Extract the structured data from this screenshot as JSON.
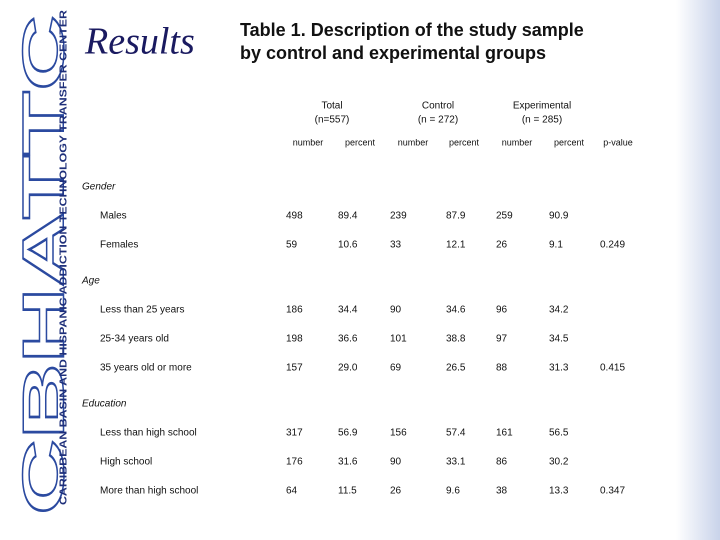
{
  "sidebar": {
    "logo": "CBHATTC",
    "organization": "CARIBBEAN BASIN AND HISPANIC ADDICTION TECHNOLOGY TRANSFER CENTER"
  },
  "heading": "Results",
  "title": [
    "Table 1. Description of the study sample",
    "by control and experimental groups"
  ],
  "table": {
    "groups": [
      {
        "label": "Total",
        "n": "(n=557)"
      },
      {
        "label": "Control",
        "n": "(n = 272)"
      },
      {
        "label": "Experimental",
        "n": "(n = 285)"
      }
    ],
    "subheaders": [
      "number",
      "percent",
      "number",
      "percent",
      "number",
      "percent",
      "p-value"
    ],
    "sections": [
      {
        "title": "Gender",
        "rows": [
          {
            "label": "Males",
            "values": [
              "498",
              "89.4",
              "239",
              "87.9",
              "259",
              "90.9"
            ]
          },
          {
            "label": "Females",
            "values": [
              "59",
              "10.6",
              "33",
              "12.1",
              "26",
              "9.1"
            ],
            "p_value": "0.249"
          }
        ]
      },
      {
        "title": "Age",
        "rows": [
          {
            "label": "Less than 25 years",
            "values": [
              "186",
              "34.4",
              "90",
              "34.6",
              "96",
              "34.2"
            ]
          },
          {
            "label": "25-34 years old",
            "values": [
              "198",
              "36.6",
              "101",
              "38.8",
              "97",
              "34.5"
            ]
          },
          {
            "label": "35 years old or more",
            "values": [
              "157",
              "29.0",
              "69",
              "26.5",
              "88",
              "31.3"
            ],
            "p_value": "0.415"
          }
        ]
      },
      {
        "title": "Education",
        "rows": [
          {
            "label": "Less than high school",
            "values": [
              "317",
              "56.9",
              "156",
              "57.4",
              "161",
              "56.5"
            ]
          },
          {
            "label": "High school",
            "values": [
              "176",
              "31.6",
              "90",
              "33.1",
              "86",
              "30.2"
            ]
          },
          {
            "label": "More than high school",
            "values": [
              "64",
              "11.5",
              "26",
              "9.6",
              "38",
              "13.3"
            ],
            "p_value": "0.347"
          }
        ]
      }
    ]
  }
}
